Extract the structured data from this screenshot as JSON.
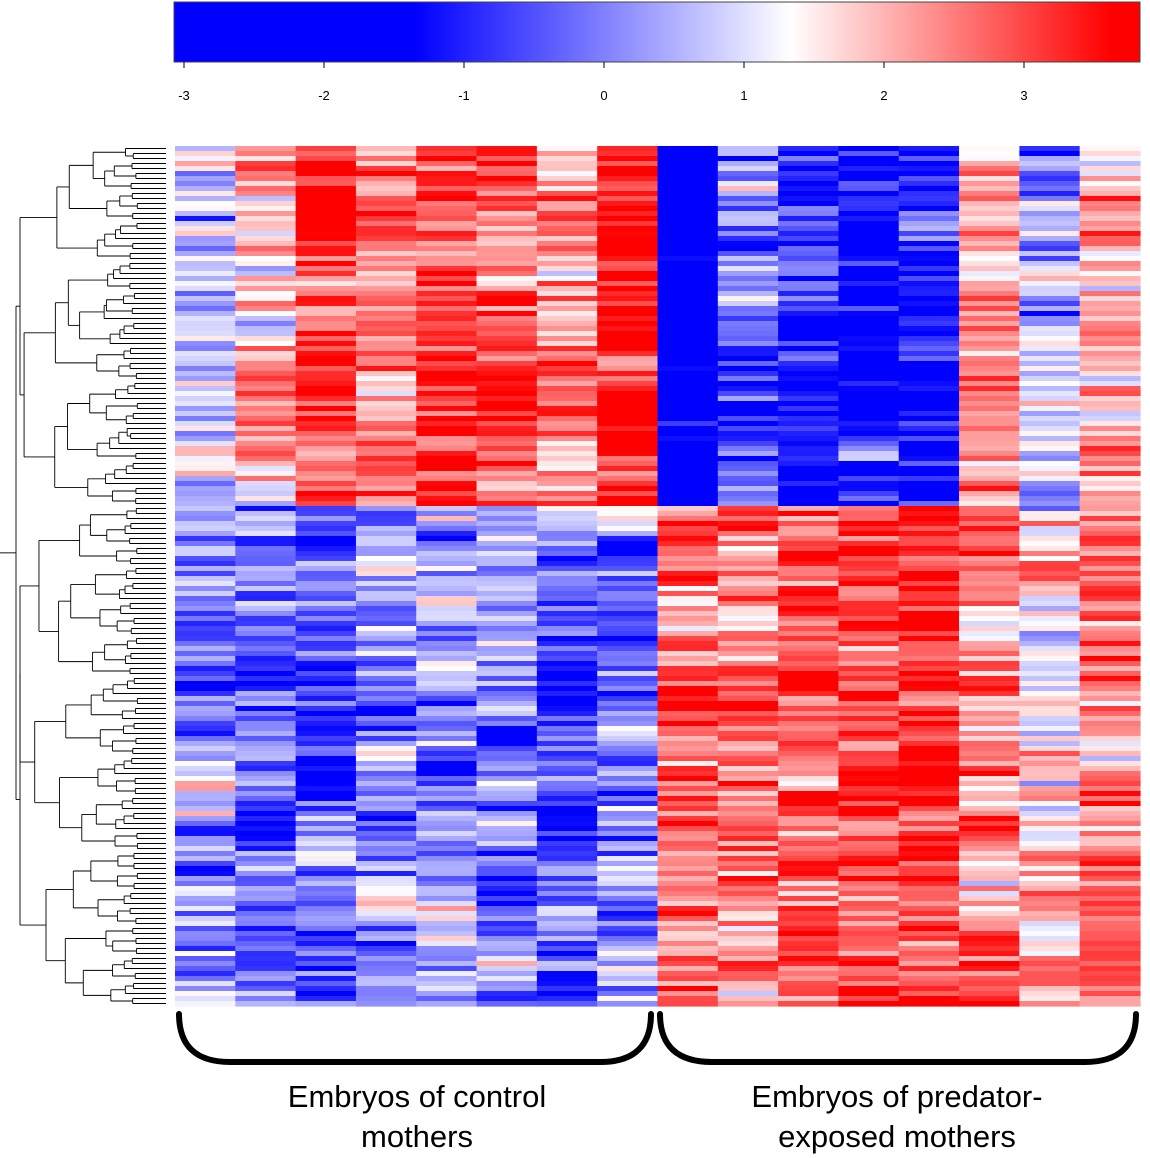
{
  "colors": {
    "low": "#0000ff",
    "mid": "#ffffff",
    "high": "#ff0000",
    "dendrogram": "#000000",
    "bracket": "#000000"
  },
  "chart_data": {
    "type": "heatmap",
    "color_scale": {
      "min": -3.1,
      "max": 3.8,
      "ticks": [
        -3,
        -2,
        -1,
        0,
        1,
        2,
        3
      ],
      "tick_labels": [
        "-3",
        "-2",
        "-1",
        "0",
        "1",
        "2",
        "3"
      ]
    },
    "columns": 16,
    "rows": 172,
    "groups": [
      {
        "label_lines": [
          "Embryos of control",
          "mothers"
        ],
        "columns": [
          0,
          7
        ]
      },
      {
        "label_lines": [
          "Embryos of predator-",
          "exposed mothers"
        ],
        "columns": [
          8,
          15
        ]
      }
    ],
    "row_dendrogram": true,
    "row_clusters": [
      {
        "rows": [
          0,
          71
        ],
        "column_means": [
          -0.4,
          0.6,
          1.6,
          1.2,
          1.6,
          1.2,
          0.8,
          1.9,
          -2.6,
          -1.0,
          -1.5,
          -2.0,
          -1.8,
          0.7,
          -0.5,
          0.5
        ]
      },
      {
        "rows": [
          72,
          171
        ],
        "column_means": [
          -0.9,
          -0.9,
          -1.3,
          -1.0,
          -0.8,
          -0.9,
          -1.2,
          -1.0,
          1.1,
          1.0,
          1.4,
          1.6,
          1.6,
          1.0,
          0.3,
          1.0
        ]
      }
    ]
  }
}
